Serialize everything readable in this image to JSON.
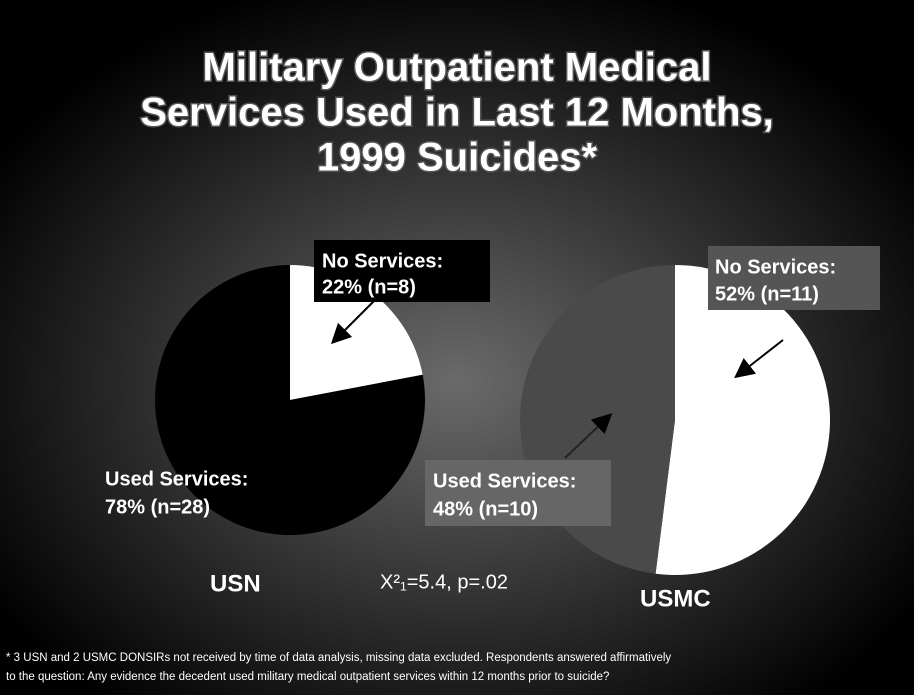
{
  "title": [
    "Military Outpatient Medical",
    "Services Used in Last 12 Months,",
    "1999 Suicides*"
  ],
  "annotation": "X²₁=5.4, p=.02",
  "footnote": [
    "* 3 USN and 2 USMC DONSIRs not received by time of data analysis, missing data  excluded. Respondents answered affirmatively",
    "to the question: Any evidence the decedent used military medical outpatient services within 12 months prior to suicide?"
  ],
  "chart_data": [
    {
      "type": "pie",
      "title": "USN",
      "categories": [
        "No Services:",
        "Used Services:"
      ],
      "values": [
        22,
        78
      ],
      "value_labels": [
        "22%  (n=8)",
        "78% (n=28)"
      ],
      "colors": [
        "#ffffff",
        "#000000"
      ]
    },
    {
      "type": "pie",
      "title": "USMC",
      "categories": [
        "No Services:",
        "Used Services:"
      ],
      "values": [
        52,
        48
      ],
      "value_labels": [
        "52%  (n=11)",
        "48%  (n=10)"
      ],
      "colors": [
        "#ffffff",
        "#4a4a4a"
      ]
    }
  ]
}
